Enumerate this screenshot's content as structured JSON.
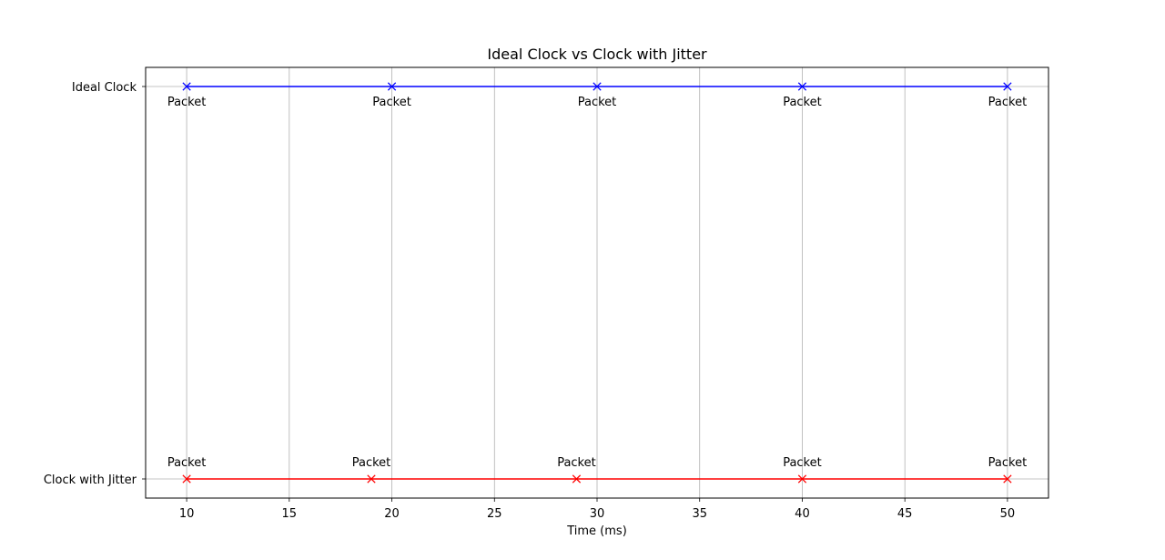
{
  "chart_data": {
    "type": "line",
    "title": "Ideal Clock vs Clock with Jitter",
    "xlabel": "Time (ms)",
    "ylabel": "",
    "xlim": [
      8,
      52
    ],
    "xticks": [
      10,
      15,
      20,
      25,
      30,
      35,
      40,
      45,
      50
    ],
    "grid": true,
    "categories": [
      "Ideal Clock",
      "Clock with Jitter"
    ],
    "series": [
      {
        "category": "Ideal Clock",
        "color": "#0000ff",
        "marker": "x",
        "label_position": "below",
        "x": [
          10,
          20,
          30,
          40,
          50
        ],
        "labels": [
          "Packet",
          "Packet",
          "Packet",
          "Packet",
          "Packet"
        ]
      },
      {
        "category": "Clock with Jitter",
        "color": "#ff0000",
        "marker": "x",
        "label_position": "above",
        "x": [
          10,
          19,
          29,
          40,
          50
        ],
        "labels": [
          "Packet",
          "Packet",
          "Packet",
          "Packet",
          "Packet"
        ]
      }
    ]
  }
}
